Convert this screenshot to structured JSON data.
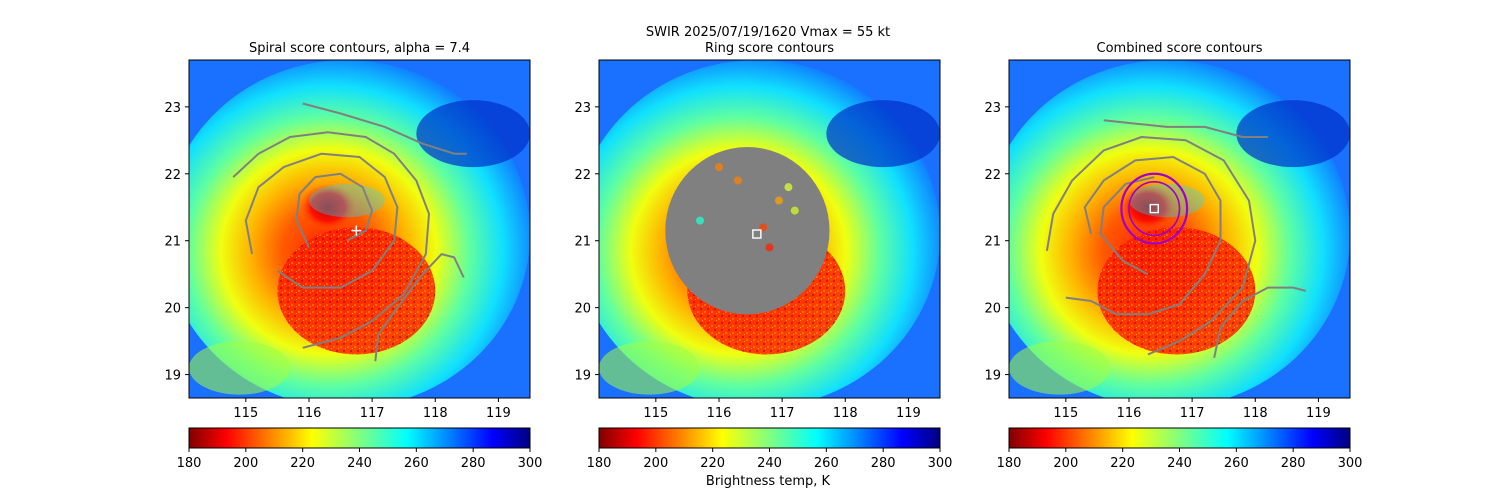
{
  "suptitle": "SWIR  2025/07/19/1620    Vmax = 55 kt",
  "chart_data": [
    {
      "type": "heatmap",
      "title": "Spiral score contours, alpha =  7.4",
      "xlim": [
        114.1,
        119.5
      ],
      "ylim": [
        18.65,
        23.7
      ],
      "xticks": [
        "115",
        "116",
        "117",
        "118",
        "119"
      ],
      "yticks": [
        "19",
        "20",
        "21",
        "22",
        "23"
      ],
      "marker": {
        "type": "plus",
        "lon": 116.75,
        "lat": 21.15,
        "color": "#ffffff"
      },
      "contour_color": "#808080",
      "overlay": "spiral_contours"
    },
    {
      "type": "heatmap",
      "title": "Ring score contours",
      "xlim": [
        114.1,
        119.5
      ],
      "ylim": [
        18.65,
        23.7
      ],
      "xticks": [
        "115",
        "116",
        "117",
        "118",
        "119"
      ],
      "yticks": [
        "19",
        "20",
        "21",
        "22",
        "23"
      ],
      "marker": {
        "type": "square",
        "lon": 116.6,
        "lat": 21.1,
        "color": "#ffffff"
      },
      "overlay": "ring_disk",
      "disk_color": "#808080"
    },
    {
      "type": "heatmap",
      "title": "Combined score contours",
      "xlim": [
        114.1,
        119.5
      ],
      "ylim": [
        18.65,
        23.7
      ],
      "xticks": [
        "115",
        "116",
        "117",
        "118",
        "119"
      ],
      "yticks": [
        "19",
        "20",
        "21",
        "22",
        "23"
      ],
      "marker": {
        "type": "square",
        "lon": 116.4,
        "lat": 21.48,
        "color": "#ffffff"
      },
      "contour_color": "#808080",
      "ring_color": "#a000c8",
      "overlay": "combined_contours"
    }
  ],
  "colorbar": {
    "label": "Brightness temp, K",
    "range": [
      180,
      300
    ],
    "ticks": [
      "180",
      "200",
      "220",
      "240",
      "260",
      "280",
      "300"
    ],
    "colormap": "jet_r"
  }
}
